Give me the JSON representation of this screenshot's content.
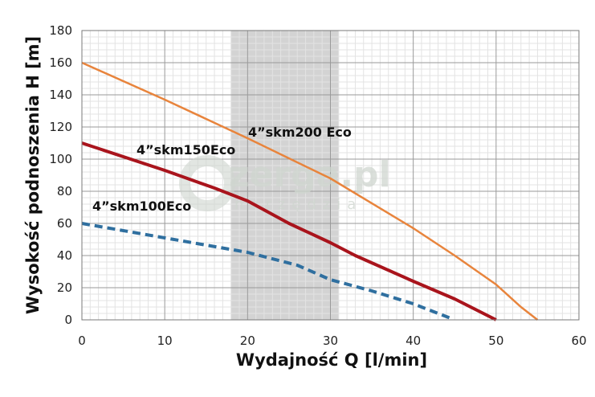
{
  "chart_data": {
    "type": "line",
    "xlabel": "Wydajność Q [l/min]",
    "ylabel": "Wysokość podnoszenia H [m]",
    "xlim": [
      0,
      60
    ],
    "ylim": [
      0,
      180
    ],
    "xticks": [
      0,
      10,
      20,
      30,
      40,
      50,
      60
    ],
    "yticks": [
      0,
      20,
      40,
      60,
      80,
      100,
      120,
      140,
      160,
      180
    ],
    "grid": true,
    "highlight_band": {
      "x_from": 18,
      "x_to": 31,
      "color": "#d3d3d3"
    },
    "series": [
      {
        "name": "4”skm200 Eco",
        "color": "#e8843c",
        "style": "solid",
        "points": [
          [
            0,
            160
          ],
          [
            10,
            137
          ],
          [
            20,
            113
          ],
          [
            30,
            88
          ],
          [
            40,
            57
          ],
          [
            45,
            40
          ],
          [
            50,
            22
          ],
          [
            53,
            8
          ],
          [
            55,
            0
          ]
        ]
      },
      {
        "name": "4”skm150Eco",
        "color": "#a9141c",
        "style": "solid",
        "points": [
          [
            0,
            110
          ],
          [
            10,
            93
          ],
          [
            16,
            82
          ],
          [
            20,
            74
          ],
          [
            25,
            60
          ],
          [
            30,
            48
          ],
          [
            33,
            40
          ],
          [
            40,
            24
          ],
          [
            45,
            13
          ],
          [
            50,
            0
          ]
        ]
      },
      {
        "name": "4”skm100Eco",
        "color": "#2f6f9f",
        "style": "dashed",
        "points": [
          [
            0,
            60
          ],
          [
            10,
            51
          ],
          [
            20,
            42
          ],
          [
            26,
            34
          ],
          [
            30,
            25
          ],
          [
            35,
            18
          ],
          [
            40,
            10
          ],
          [
            44.5,
            1
          ]
        ]
      }
    ]
  },
  "watermark": {
    "main": "zerga.pl",
    "sub": "narzędzia",
    "color": "#cfd6cf"
  }
}
